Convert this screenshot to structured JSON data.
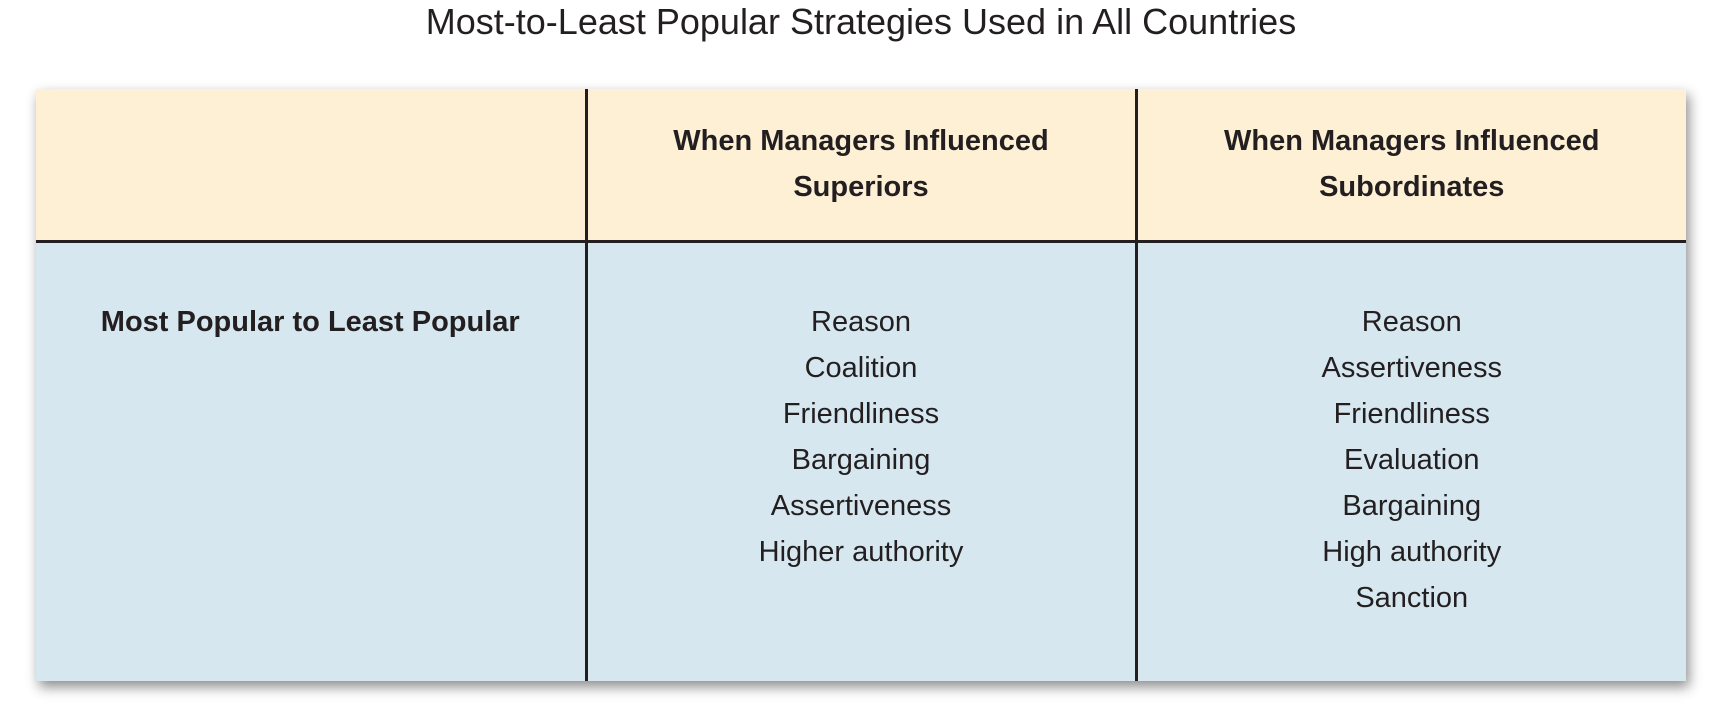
{
  "title": "Most-to-Least Popular Strategies Used in All Countries",
  "table": {
    "headers": [
      "",
      "When Managers Influenced Superiors",
      "When Managers Influenced Subordinates"
    ],
    "row_label": "Most Popular to Least Popular",
    "superiors": [
      "Reason",
      "Coalition",
      "Friendliness",
      "Bargaining",
      "Assertiveness",
      "Higher authority"
    ],
    "subordinates": [
      "Reason",
      "Assertiveness",
      "Friendliness",
      "Evaluation",
      "Bargaining",
      "High authority",
      "Sanction"
    ]
  },
  "colors": {
    "header_background": "#fdf0d5",
    "body_background": "#d6e7f0",
    "rule": "#231f20"
  }
}
